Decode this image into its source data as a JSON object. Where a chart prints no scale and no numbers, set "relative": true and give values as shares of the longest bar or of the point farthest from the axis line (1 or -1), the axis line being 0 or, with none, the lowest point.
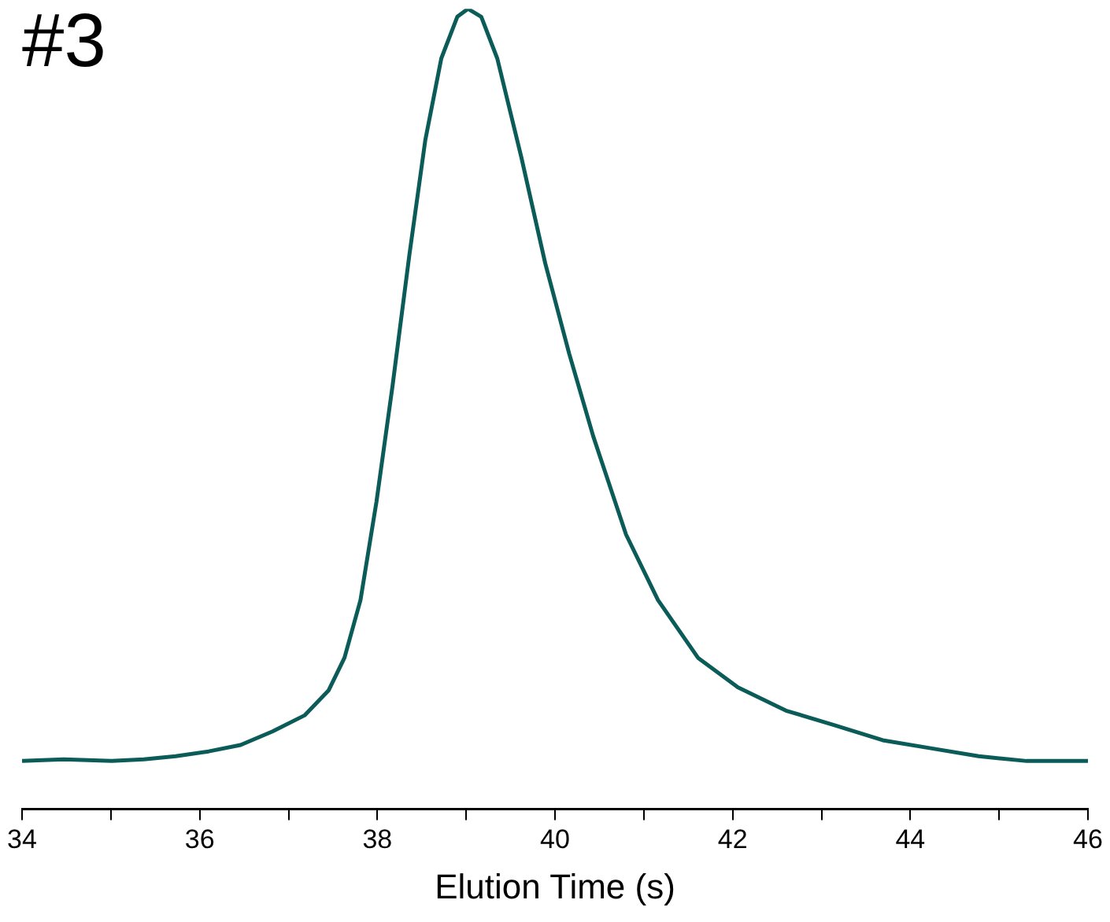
{
  "chart_data": {
    "type": "line",
    "title": "#3",
    "xlabel": "Elution Time (s)",
    "relative": true,
    "color": "#0b5c59",
    "x": [
      34.0,
      34.47,
      35.01,
      35.37,
      35.73,
      36.1,
      36.46,
      36.82,
      37.18,
      37.45,
      37.63,
      37.81,
      37.99,
      38.17,
      38.36,
      38.54,
      38.72,
      38.9,
      39.02,
      39.17,
      39.35,
      39.62,
      39.89,
      40.16,
      40.43,
      40.8,
      41.16,
      41.61,
      42.06,
      42.6,
      43.14,
      43.69,
      44.23,
      44.77,
      45.31,
      46.0
    ],
    "values": [
      0.06,
      0.062,
      0.06,
      0.062,
      0.066,
      0.072,
      0.08,
      0.097,
      0.117,
      0.148,
      0.189,
      0.261,
      0.384,
      0.528,
      0.692,
      0.836,
      0.938,
      0.99,
      1,
      0.99,
      0.938,
      0.815,
      0.682,
      0.569,
      0.466,
      0.343,
      0.261,
      0.189,
      0.152,
      0.123,
      0.105,
      0.086,
      0.076,
      0.066,
      0.06,
      0.06
    ],
    "xlim": [
      34,
      46
    ],
    "xticks": [
      34,
      {
        "value": 35,
        "label": null
      },
      36,
      {
        "value": 37,
        "label": null
      },
      38,
      {
        "value": 39,
        "label": null
      },
      40,
      {
        "value": 41,
        "label": null
      },
      42,
      {
        "value": 43,
        "label": null
      },
      44,
      {
        "value": 45,
        "label": null
      },
      46
    ],
    "grid": false,
    "legend": false,
    "marker": "none",
    "line_style": "solid"
  }
}
